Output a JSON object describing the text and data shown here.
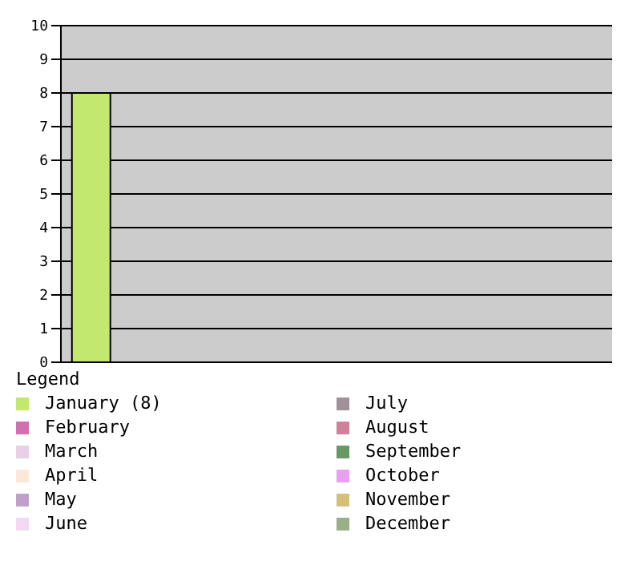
{
  "chart_data": {
    "type": "bar",
    "categories": [
      null
    ],
    "ylim": [
      0,
      10
    ],
    "yticks": [
      0,
      1,
      2,
      3,
      4,
      5,
      6,
      7,
      8,
      9,
      10
    ],
    "grid": "y",
    "legend": "bottom",
    "legend_title": "Legend",
    "series": [
      {
        "name": "January (8)",
        "color": "#c2e86f",
        "values": [
          8
        ]
      },
      {
        "name": "February",
        "color": "#d070b0",
        "values": [
          0
        ]
      },
      {
        "name": "March",
        "color": "#e8d0e8",
        "values": [
          0
        ]
      },
      {
        "name": "April",
        "color": "#fde8d8",
        "values": [
          0
        ]
      },
      {
        "name": "May",
        "color": "#c0a0c8",
        "values": [
          0
        ]
      },
      {
        "name": "June",
        "color": "#f4d8f4",
        "values": [
          0
        ]
      },
      {
        "name": "July",
        "color": "#a09098",
        "values": [
          0
        ]
      },
      {
        "name": "August",
        "color": "#d08098",
        "values": [
          0
        ]
      },
      {
        "name": "September",
        "color": "#689868",
        "values": [
          0
        ]
      },
      {
        "name": "October",
        "color": "#e8a0f0",
        "values": [
          0
        ]
      },
      {
        "name": "November",
        "color": "#d4c078",
        "values": [
          0
        ]
      },
      {
        "name": "December",
        "color": "#98b088",
        "values": [
          0
        ]
      }
    ]
  }
}
